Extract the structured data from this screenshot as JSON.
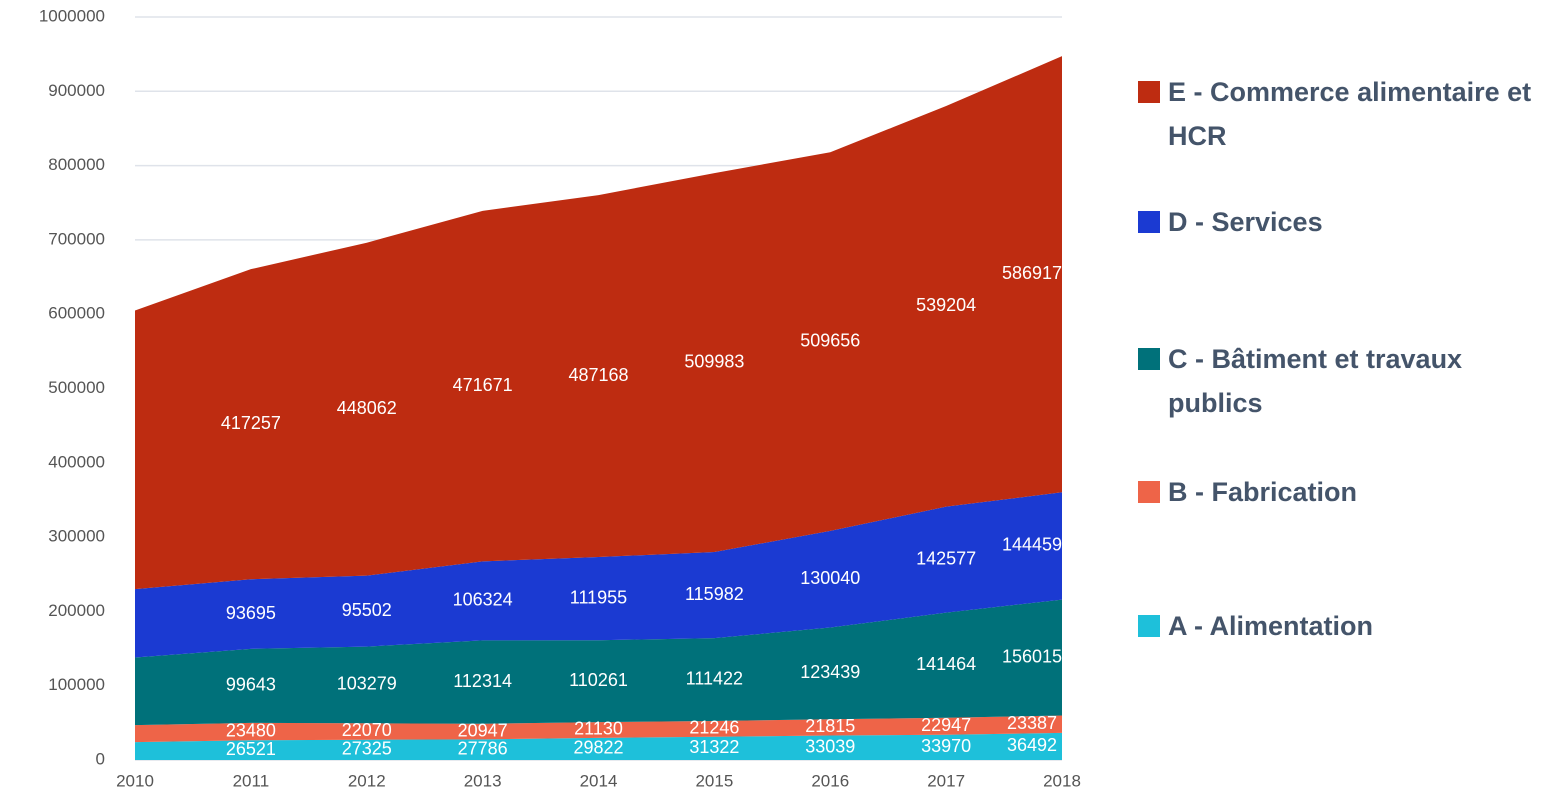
{
  "chart_data": {
    "type": "stacked_area",
    "x": [
      2010,
      2011,
      2012,
      2013,
      2014,
      2015,
      2016,
      2017,
      2018
    ],
    "xlim": [
      2010,
      2018
    ],
    "xticks": [
      2010,
      2011,
      2012,
      2013,
      2014,
      2015,
      2016,
      2017,
      2018
    ],
    "ylim": [
      0,
      1000000
    ],
    "yticks": [
      0,
      100000,
      200000,
      300000,
      400000,
      500000,
      600000,
      700000,
      800000,
      900000,
      1000000
    ],
    "grid": true,
    "legend": "right",
    "series": [
      {
        "name": "A - Alimentation",
        "color": "#1ec0da",
        "values": [
          24000,
          26521,
          27325,
          27786,
          29822,
          31322,
          33039,
          33970,
          36492
        ],
        "value_labels": [
          null,
          "26521",
          "27325",
          "27786",
          "29822",
          "31322",
          "33039",
          "33970",
          "36492"
        ]
      },
      {
        "name": "B - Fabrication",
        "color": "#ee6448",
        "values": [
          23000,
          23480,
          22070,
          20947,
          21130,
          21246,
          21815,
          22947,
          23387
        ],
        "value_labels": [
          null,
          "23480",
          "22070",
          "20947",
          "21130",
          "21246",
          "21815",
          "22947",
          "23387"
        ]
      },
      {
        "name": "C - Bâtiment et travaux publics",
        "color": "#00717a",
        "values": [
          91000,
          99643,
          103279,
          112314,
          110261,
          111422,
          123439,
          141464,
          156015
        ],
        "value_labels": [
          null,
          "99643",
          "103279",
          "112314",
          "110261",
          "111422",
          "123439",
          "141464",
          "156015"
        ]
      },
      {
        "name": "D - Services",
        "color": "#1b3ad2",
        "values": [
          92000,
          93695,
          95502,
          106324,
          111955,
          115982,
          130040,
          142577,
          144459
        ],
        "value_labels": [
          null,
          "93695",
          "95502",
          "106324",
          "111955",
          "115982",
          "130040",
          "142577",
          "144459"
        ]
      },
      {
        "name": "E - Commerce alimentaire et HCR",
        "color": "#be2c11",
        "values": [
          375000,
          417257,
          448062,
          471671,
          487168,
          509983,
          509656,
          539204,
          586917
        ],
        "value_labels": [
          null,
          "417257",
          "448062",
          "471671",
          "487168",
          "509983",
          "509656",
          "539204",
          "586917"
        ]
      }
    ]
  }
}
